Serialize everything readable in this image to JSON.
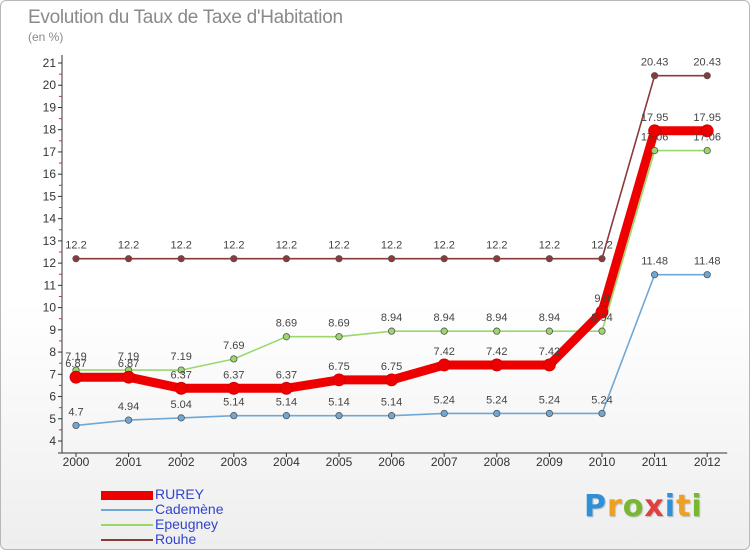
{
  "chart_data": {
    "type": "line",
    "title": "Evolution du Taux de Taxe d'Habitation",
    "subtitle": "(en %)",
    "xlabel": "",
    "ylabel": "",
    "x": [
      "2000",
      "2001",
      "2002",
      "2003",
      "2004",
      "2005",
      "2006",
      "2007",
      "2008",
      "2009",
      "2010",
      "2011",
      "2012"
    ],
    "ylim": [
      4,
      21
    ],
    "yticks": [
      4,
      5,
      6,
      7,
      8,
      9,
      10,
      11,
      12,
      13,
      14,
      15,
      16,
      17,
      18,
      19,
      20,
      21
    ],
    "grid": false,
    "legend_position": "bottom-left",
    "series": [
      {
        "name": "RUREY",
        "color": "#ee0000",
        "values": [
          6.87,
          6.87,
          6.37,
          6.37,
          6.37,
          6.75,
          6.75,
          7.42,
          7.42,
          7.42,
          9.8,
          17.95,
          17.95
        ],
        "labels": [
          "6.87",
          "6.87",
          "6.37",
          "6.37",
          "6.37",
          "6.75",
          "6.75",
          "7.42",
          "7.42",
          "7.42",
          "9.8",
          "17.95",
          "17.95"
        ]
      },
      {
        "name": "Cademène",
        "color": "#6fa8d6",
        "values": [
          4.7,
          4.94,
          5.04,
          5.14,
          5.14,
          5.14,
          5.14,
          5.24,
          5.24,
          5.24,
          5.24,
          11.48,
          11.48
        ],
        "labels": [
          "4.7",
          "4.94",
          "5.04",
          "5.14",
          "5.14",
          "5.14",
          "5.14",
          "5.24",
          "5.24",
          "5.24",
          "5.24",
          "11.48",
          "11.48"
        ]
      },
      {
        "name": "Epeugney",
        "color": "#9ad86c",
        "values": [
          7.19,
          7.19,
          7.19,
          7.69,
          8.69,
          8.69,
          8.94,
          8.94,
          8.94,
          8.94,
          8.94,
          17.06,
          17.06
        ],
        "labels": [
          "7.19",
          "7.19",
          "7.19",
          "7.69",
          "8.69",
          "8.69",
          "8.94",
          "8.94",
          "8.94",
          "8.94",
          "8.94",
          "17.06",
          "17.06"
        ]
      },
      {
        "name": "Rouhe",
        "color": "#8b3a3a",
        "values": [
          12.2,
          12.2,
          12.2,
          12.2,
          12.2,
          12.2,
          12.2,
          12.2,
          12.2,
          12.2,
          12.2,
          20.43,
          20.43
        ],
        "labels": [
          "12.2",
          "12.2",
          "12.2",
          "12.2",
          "12.2",
          "12.2",
          "12.2",
          "12.2",
          "12.2",
          "12.2",
          "12.2",
          "20.43",
          "20.43"
        ]
      }
    ]
  },
  "logo": {
    "letters": [
      "P",
      "r",
      "o",
      "x",
      "i",
      "t",
      "i"
    ],
    "colors": [
      "#2f8fd8",
      "#f0a020",
      "#78b830",
      "#e04040",
      "#2f8fd8",
      "#f0a020",
      "#78b830"
    ]
  }
}
